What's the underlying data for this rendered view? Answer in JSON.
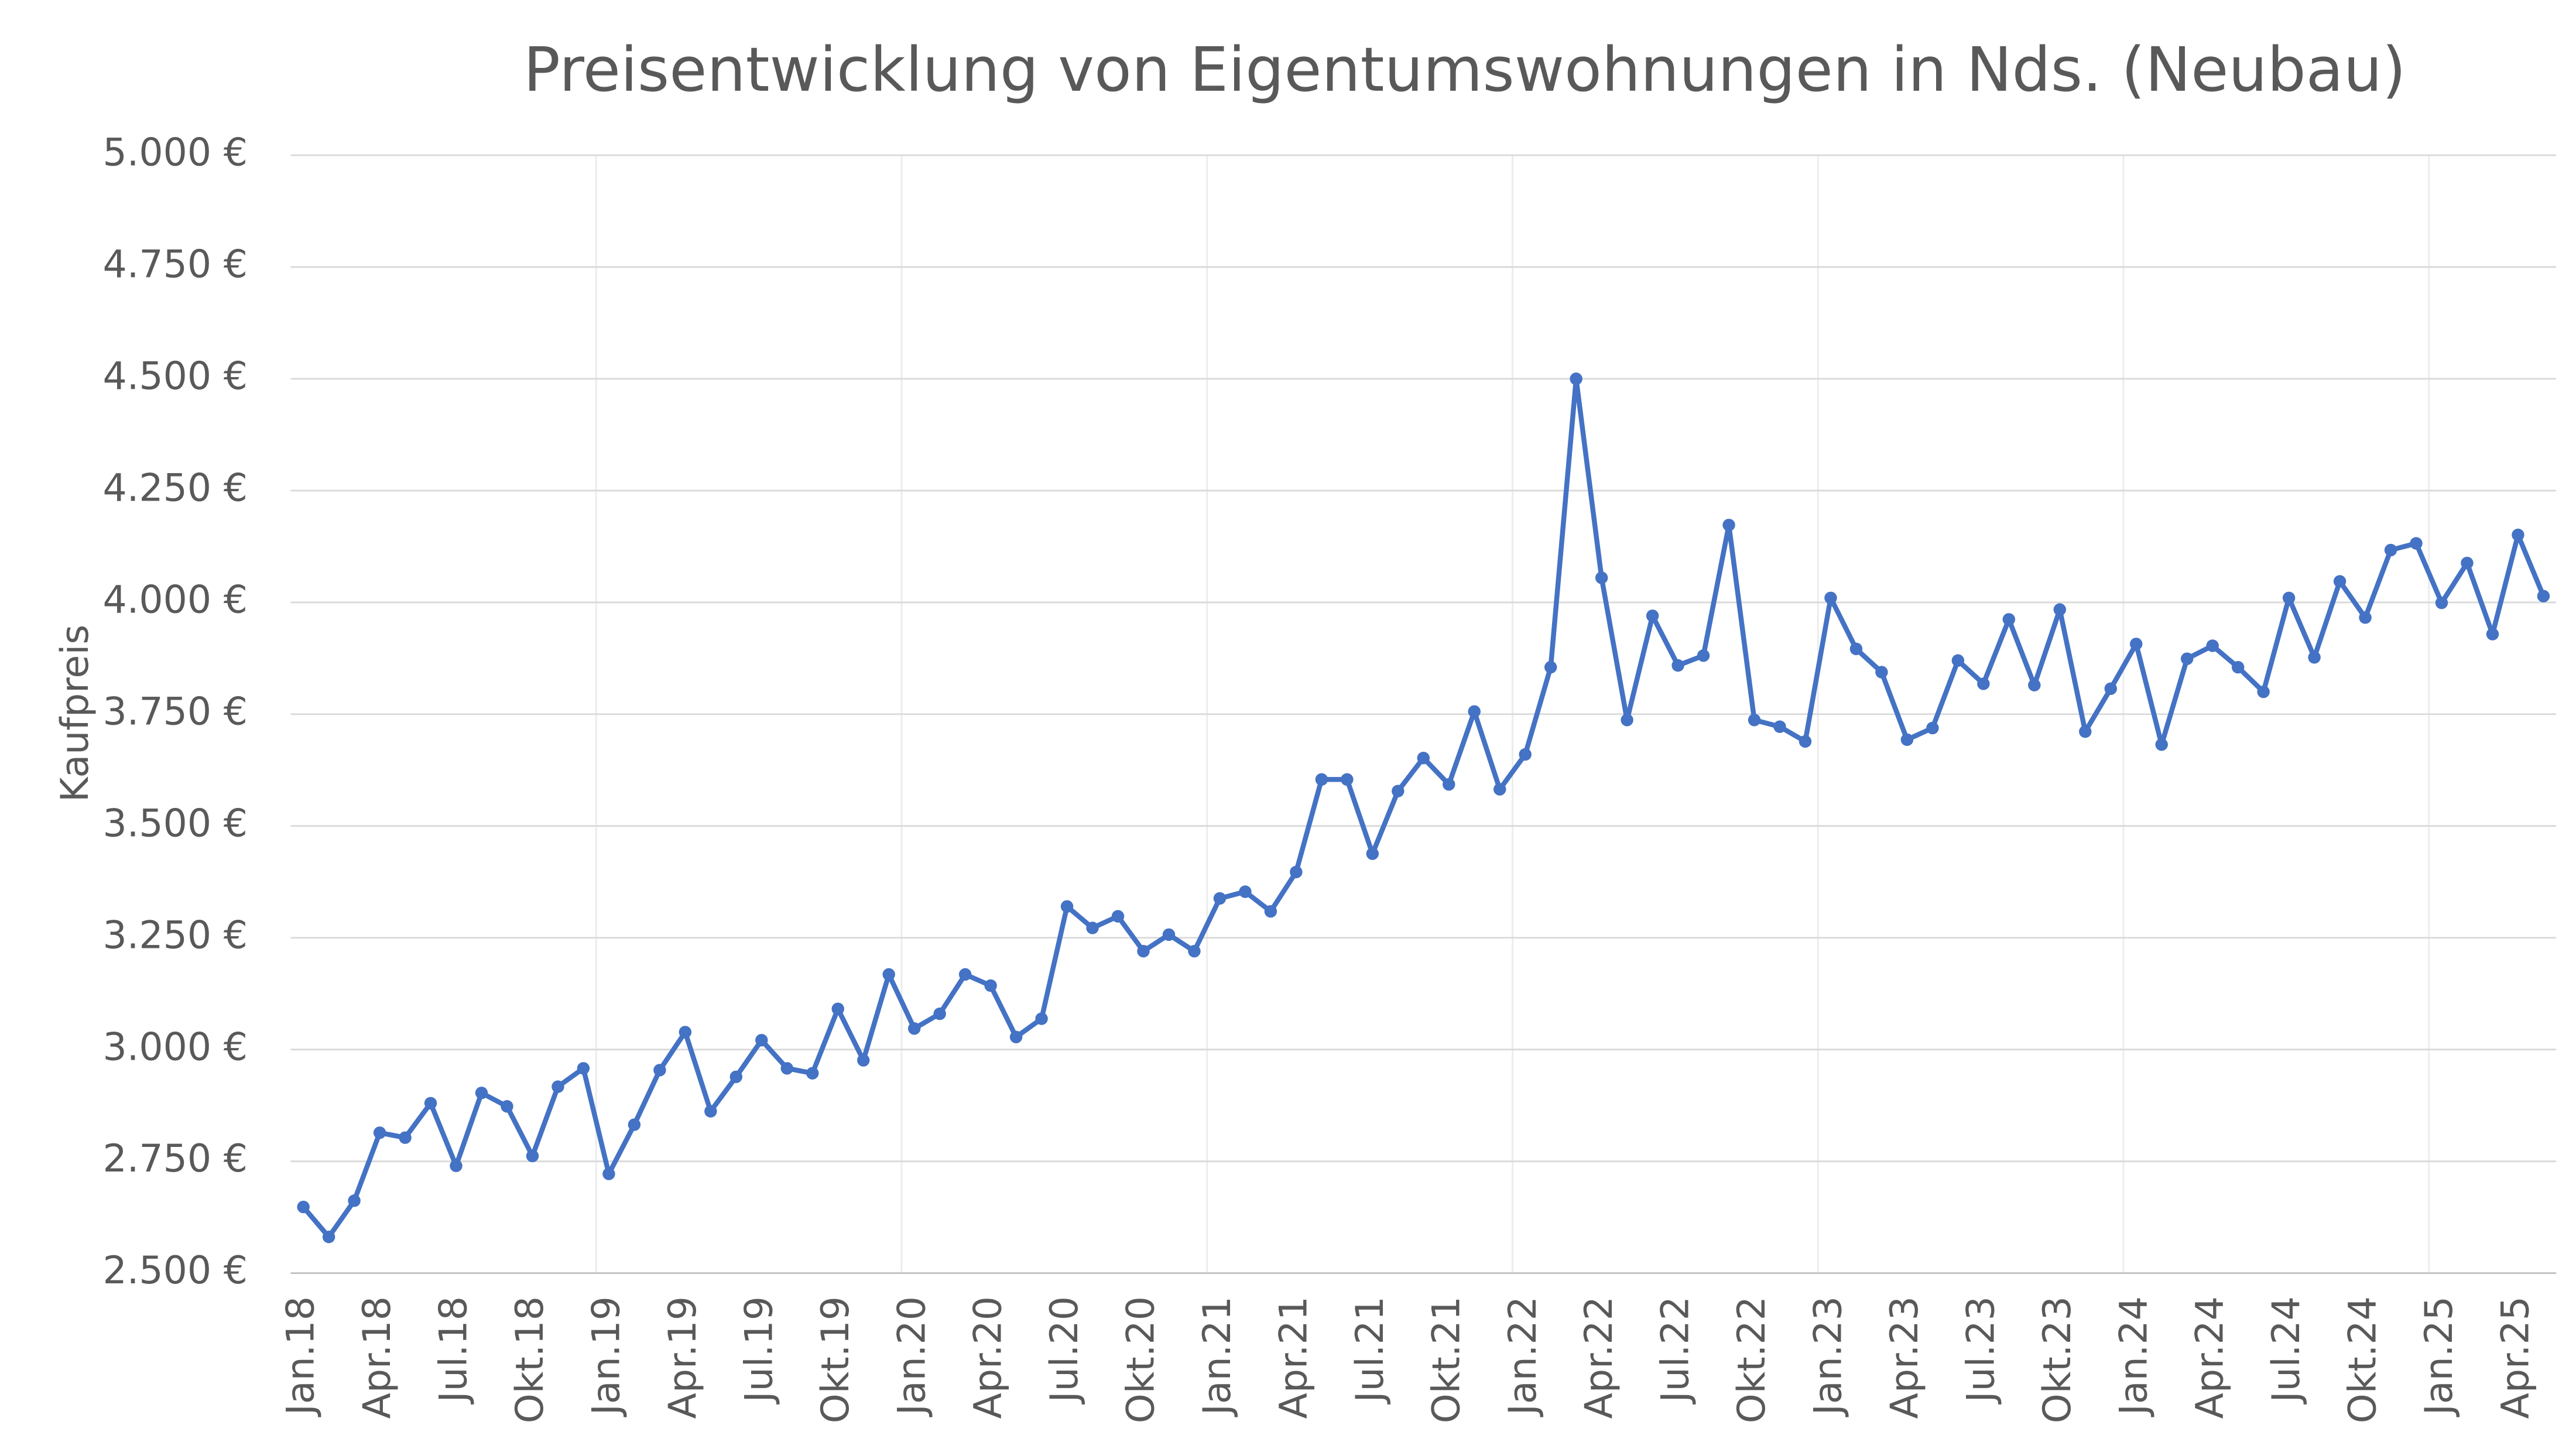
{
  "chart_data": {
    "type": "line",
    "title": "Preisentwicklung von Eigentumswohnungen in Nds. (Neubau)",
    "y_label": "Kaufpreis",
    "categories": [
      "Jan.18",
      null,
      null,
      "Apr.18",
      null,
      null,
      "Jul.18",
      null,
      null,
      "Okt.18",
      null,
      null,
      "Jan.19",
      null,
      null,
      "Apr.19",
      null,
      null,
      "Jul.19",
      null,
      null,
      "Okt.19",
      null,
      null,
      "Jan.20",
      null,
      null,
      "Apr.20",
      null,
      null,
      "Jul.20",
      null,
      null,
      "Okt.20",
      null,
      null,
      "Jan.21",
      null,
      null,
      "Apr.21",
      null,
      null,
      "Jul.21",
      null,
      null,
      "Okt.21",
      null,
      null,
      "Jan.22",
      null,
      null,
      "Apr.22",
      null,
      null,
      "Jul.22",
      null,
      null,
      "Okt.22",
      null,
      null,
      "Jan.23",
      null,
      null,
      "Apr.23",
      null,
      null,
      "Jul.23",
      null,
      null,
      "Okt.23",
      null,
      null,
      "Jan.24",
      null,
      null,
      "Apr.24",
      null,
      null,
      "Jul.24",
      null,
      null,
      "Okt.24",
      null,
      null,
      "Jan.25",
      null,
      null,
      "Apr.25",
      null
    ],
    "series": [
      {
        "name": "Kaufpreis",
        "color": "#4472c4",
        "values": [
          2648,
          2581,
          2662,
          2814,
          2803,
          2880,
          2740,
          2903,
          2873,
          2762,
          2917,
          2958,
          2722,
          2832,
          2954,
          3039,
          2862,
          2939,
          3021,
          2958,
          2947,
          3091,
          2976,
          3168,
          3047,
          3080,
          3168,
          3143,
          3028,
          3069,
          3320,
          3272,
          3298,
          3220,
          3257,
          3220,
          3338,
          3353,
          3309,
          3397,
          3604,
          3604,
          3438,
          3578,
          3652,
          3593,
          3756,
          3582,
          3660,
          3855,
          4500,
          4055,
          3737,
          3970,
          3859,
          3881,
          4173,
          3737,
          3722,
          3689,
          4010,
          3896,
          3844,
          3693,
          3719,
          3870,
          3818,
          3962,
          3815,
          3984,
          3711,
          3807,
          3907,
          3682,
          3874,
          3903,
          3855,
          3800,
          4010,
          3877,
          4047,
          3966,
          4117,
          4132,
          3999,
          4088,
          3929,
          4151,
          4014
        ]
      }
    ],
    "ylim": [
      2500,
      5000
    ],
    "yticks": [
      {
        "value": 2500,
        "label": "2.500 €"
      },
      {
        "value": 2750,
        "label": "2.750 €"
      },
      {
        "value": 3000,
        "label": "3.000 €"
      },
      {
        "value": 3250,
        "label": "3.250 €"
      },
      {
        "value": 3500,
        "label": "3.500 €"
      },
      {
        "value": 3750,
        "label": "3.750 €"
      },
      {
        "value": 4000,
        "label": "4.000 €"
      },
      {
        "value": 4250,
        "label": "4.250 €"
      },
      {
        "value": 4500,
        "label": "4.500 €"
      },
      {
        "value": 4750,
        "label": "4.750 €"
      },
      {
        "value": 5000,
        "label": "5.000 €"
      }
    ],
    "grid": true
  }
}
